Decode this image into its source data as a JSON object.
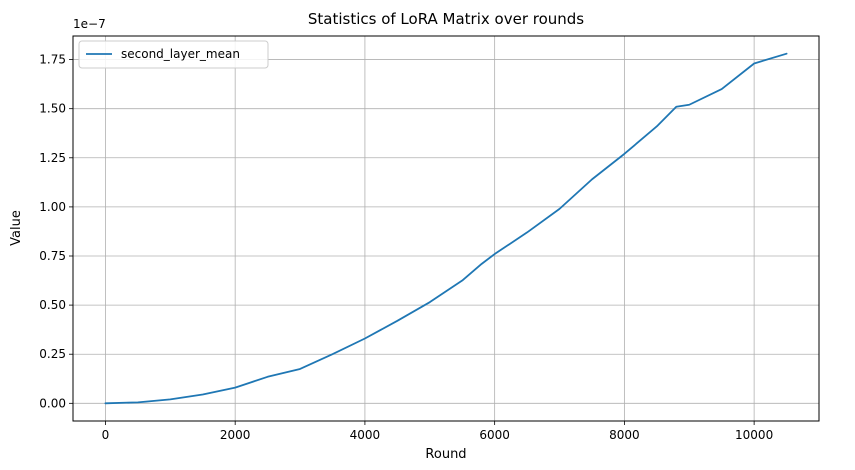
{
  "chart_data": {
    "type": "line",
    "title": "Statistics of LoRA Matrix over rounds",
    "xlabel": "Round",
    "ylabel": "Value",
    "y_offset_label": "1e−7",
    "xlim": [
      -500,
      11000
    ],
    "ylim": [
      -0.09,
      1.87
    ],
    "x_ticks": [
      0,
      2000,
      4000,
      6000,
      8000,
      10000
    ],
    "x_tick_labels": [
      "0",
      "2000",
      "4000",
      "6000",
      "8000",
      "10000"
    ],
    "y_ticks": [
      0.0,
      0.25,
      0.5,
      0.75,
      1.0,
      1.25,
      1.5,
      1.75
    ],
    "y_tick_labels": [
      "0.00",
      "0.25",
      "0.50",
      "0.75",
      "1.00",
      "1.25",
      "1.50",
      "1.75"
    ],
    "grid": true,
    "legend_position": "upper-left",
    "series": [
      {
        "name": "second_layer_mean",
        "color": "#1f77b4",
        "x": [
          0,
          500,
          1000,
          1500,
          2000,
          2500,
          3000,
          3500,
          4000,
          4500,
          5000,
          5500,
          5800,
          6000,
          6500,
          7000,
          7500,
          8000,
          8500,
          8800,
          9000,
          9500,
          10000,
          10500
        ],
        "y": [
          0.0,
          0.005,
          0.02,
          0.045,
          0.08,
          0.135,
          0.175,
          0.25,
          0.33,
          0.42,
          0.515,
          0.625,
          0.71,
          0.76,
          0.87,
          0.99,
          1.14,
          1.27,
          1.41,
          1.51,
          1.52,
          1.6,
          1.73,
          1.78
        ]
      }
    ]
  }
}
